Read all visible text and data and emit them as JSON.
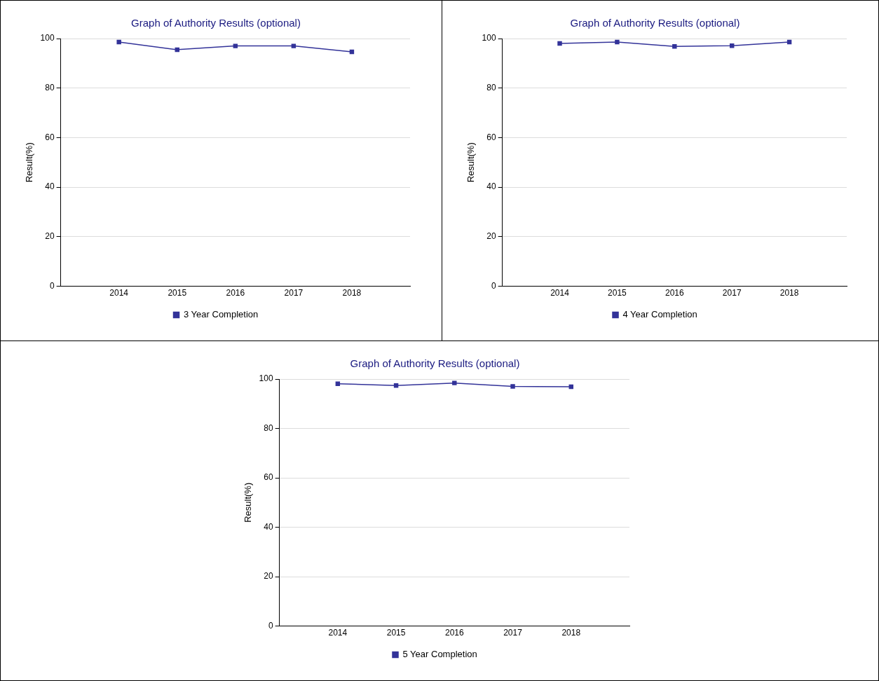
{
  "chart_data": [
    {
      "type": "line",
      "title": "Graph of Authority Results (optional)",
      "ylabel": "Result(%)",
      "x": [
        2014,
        2015,
        2016,
        2017,
        2018
      ],
      "xlim": [
        2013,
        2019
      ],
      "xticks": [
        2014,
        2015,
        2016,
        2017,
        2018
      ],
      "ylim": [
        0,
        100
      ],
      "yticks": [
        0,
        20,
        40,
        60,
        80,
        100
      ],
      "grid": "y",
      "legend": "bottom",
      "marker": "square",
      "line_style": "solid",
      "series": [
        {
          "name": "3 Year Completion",
          "color": "#333399",
          "values": [
            98.6,
            95.5,
            97.0,
            97.0,
            94.6
          ]
        }
      ]
    },
    {
      "type": "line",
      "title": "Graph of Authority Results (optional)",
      "ylabel": "Result(%)",
      "x": [
        2014,
        2015,
        2016,
        2017,
        2018
      ],
      "xlim": [
        2013,
        2019
      ],
      "xticks": [
        2014,
        2015,
        2016,
        2017,
        2018
      ],
      "ylim": [
        0,
        100
      ],
      "yticks": [
        0,
        20,
        40,
        60,
        80,
        100
      ],
      "grid": "y",
      "legend": "bottom",
      "marker": "square",
      "line_style": "solid",
      "series": [
        {
          "name": "4 Year Completion",
          "color": "#333399",
          "values": [
            98.0,
            98.6,
            96.8,
            97.1,
            98.6
          ]
        }
      ]
    },
    {
      "type": "line",
      "title": "Graph of Authority Results (optional)",
      "ylabel": "Result(%)",
      "x": [
        2014,
        2015,
        2016,
        2017,
        2018
      ],
      "xlim": [
        2013,
        2019
      ],
      "xticks": [
        2014,
        2015,
        2016,
        2017,
        2018
      ],
      "ylim": [
        0,
        100
      ],
      "yticks": [
        0,
        20,
        40,
        60,
        80,
        100
      ],
      "grid": "y",
      "legend": "bottom",
      "marker": "square",
      "line_style": "solid",
      "series": [
        {
          "name": "5 Year Completion",
          "color": "#333399",
          "values": [
            98.1,
            97.4,
            98.4,
            97.0,
            96.9
          ]
        }
      ]
    }
  ]
}
